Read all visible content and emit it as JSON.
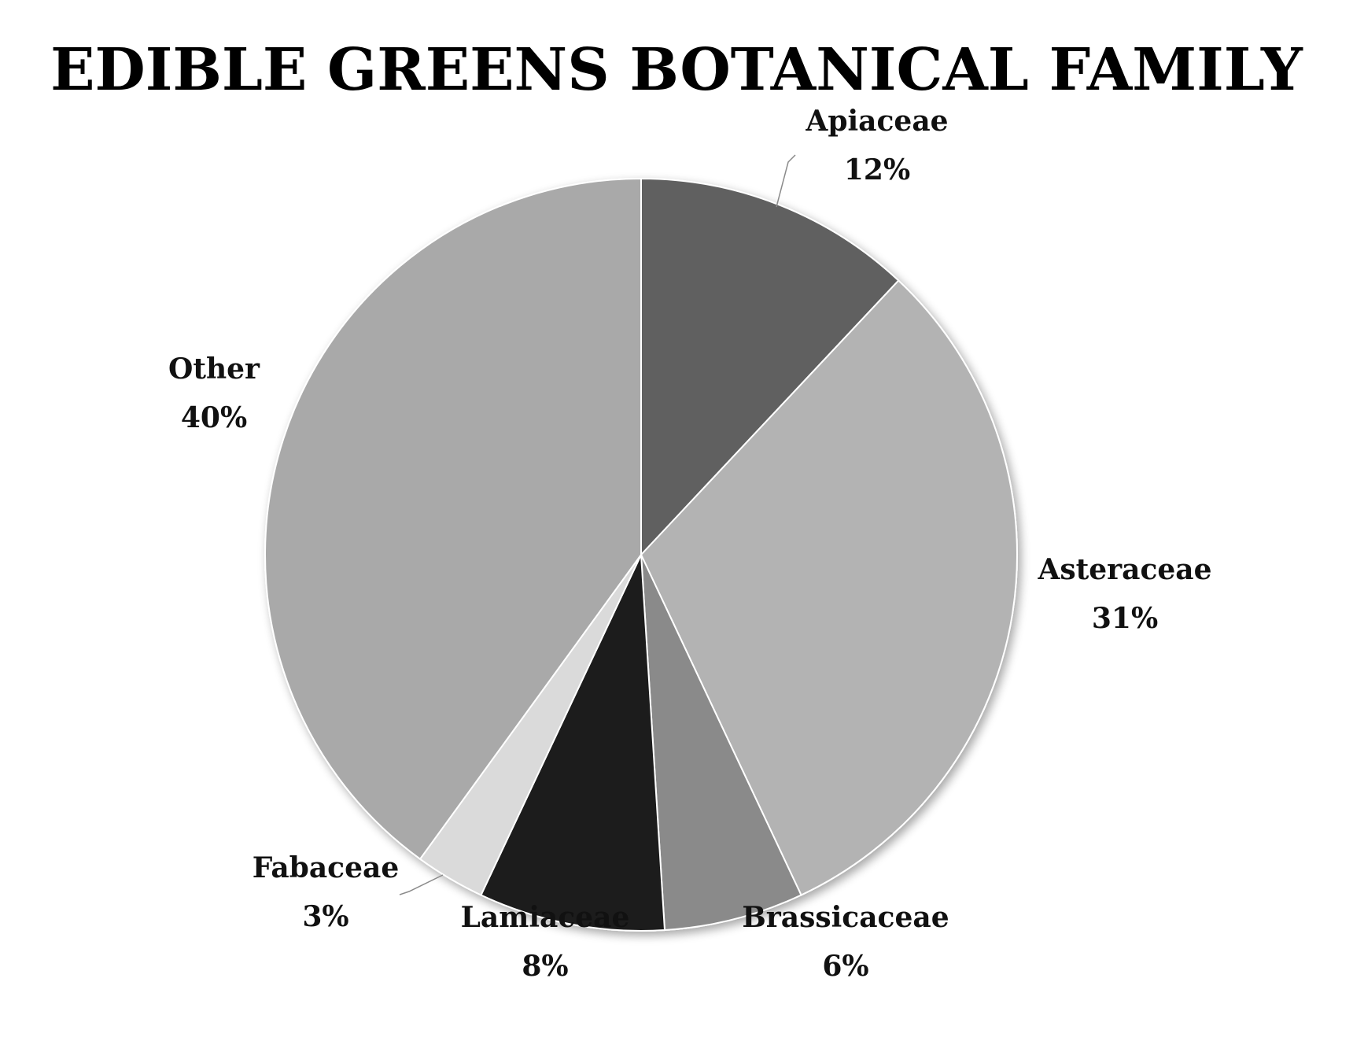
{
  "chart_data": {
    "type": "pie",
    "title": "EDIBLE GREENS BOTANICAL FAMILY",
    "start_angle_deg": 0,
    "direction": "clockwise",
    "slices": [
      {
        "name": "Apiaceae",
        "value": 12,
        "value_label": "12%",
        "color": "#606060"
      },
      {
        "name": "Asteraceae",
        "value": 31,
        "value_label": "31%",
        "color": "#b3b3b3"
      },
      {
        "name": "Brassicaceae",
        "value": 6,
        "value_label": "6%",
        "color": "#8a8a8a"
      },
      {
        "name": "Lamiaceae",
        "value": 8,
        "value_label": "8%",
        "color": "#1c1c1c"
      },
      {
        "name": "Fabaceae",
        "value": 3,
        "value_label": "3%",
        "color": "#dadada"
      },
      {
        "name": "Other",
        "value": 40,
        "value_label": "40%",
        "color": "#a9a9a9"
      }
    ]
  }
}
